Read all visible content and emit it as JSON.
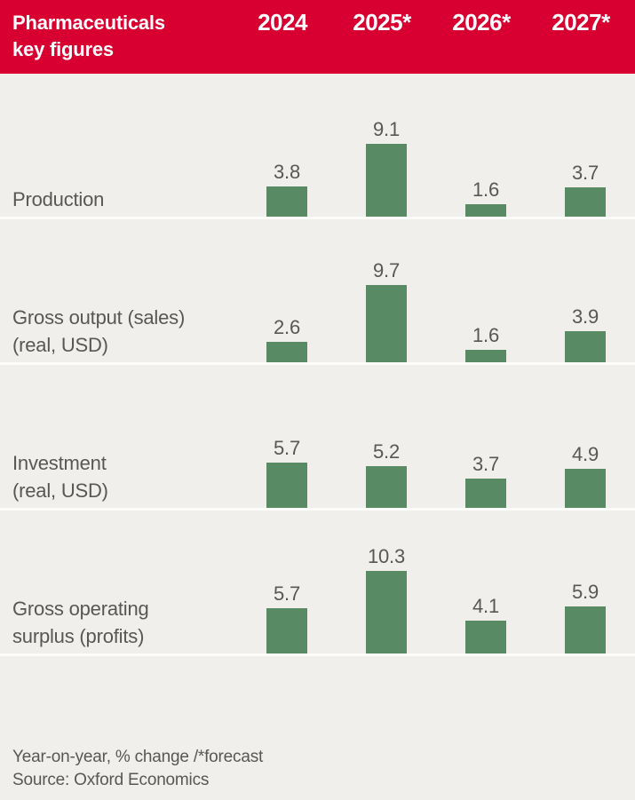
{
  "header": {
    "title_line1": "Pharmaceuticals",
    "title_line2": "key figures",
    "columns": [
      "2024",
      "2025*",
      "2026*",
      "2027*"
    ]
  },
  "rows": [
    {
      "label_lines": [
        "Production"
      ],
      "values": [
        "3.8",
        "9.1",
        "1.6",
        "3.7"
      ]
    },
    {
      "label_lines": [
        "Gross output (sales)",
        "(real, USD)"
      ],
      "values": [
        "2.6",
        "9.7",
        "1.6",
        "3.9"
      ]
    },
    {
      "label_lines": [
        "Investment",
        "(real, USD)"
      ],
      "values": [
        "5.7",
        "5.2",
        "3.7",
        "4.9"
      ]
    },
    {
      "label_lines": [
        "Gross operating",
        "surplus (profits)"
      ],
      "values": [
        "5.7",
        "10.3",
        "4.1",
        "5.9"
      ]
    }
  ],
  "footer": {
    "note": "Year-on-year, % change /*forecast",
    "source": "Source: Oxford Economics"
  },
  "colors": {
    "header_bg": "#d80031",
    "header_text": "#ffffff",
    "bar": "#588a63",
    "background": "#f1efec",
    "text": "#575756",
    "row_divider": "#fdfdfc"
  },
  "chart_data": {
    "type": "bar",
    "title": "Pharmaceuticals key figures",
    "categories": [
      "2024",
      "2025*",
      "2026*",
      "2027*"
    ],
    "series": [
      {
        "name": "Production",
        "values": [
          3.8,
          9.1,
          1.6,
          3.7
        ]
      },
      {
        "name": "Gross output (sales) (real, USD)",
        "values": [
          2.6,
          9.7,
          1.6,
          3.9
        ]
      },
      {
        "name": "Investment (real, USD)",
        "values": [
          5.7,
          5.2,
          3.7,
          4.9
        ]
      },
      {
        "name": "Gross operating surplus (profits)",
        "values": [
          5.7,
          10.3,
          4.1,
          5.9
        ]
      }
    ],
    "ylabel": "Year-on-year, % change",
    "note": "Year-on-year, % change /*forecast",
    "source": "Source: Oxford Economics",
    "value_labels": true,
    "axes_shown": false,
    "grid": false,
    "legend_position": "none",
    "approx_value_range": [
      0,
      10.3
    ],
    "bar_color": "#588a63"
  }
}
